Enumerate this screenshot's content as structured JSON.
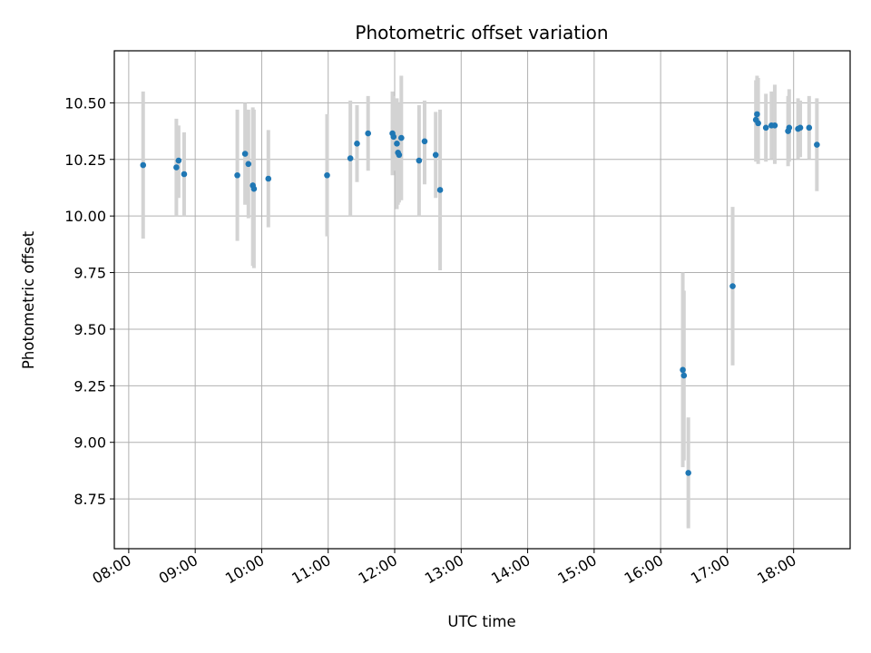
{
  "chart_data": {
    "type": "scatter",
    "title": "Photometric offset variation",
    "xlabel": "UTC time",
    "ylabel": "Photometric offset",
    "x_format": "HH:MM",
    "xlim": [
      "07:47",
      "18:51"
    ],
    "ylim": [
      8.53,
      10.73
    ],
    "x_ticks": [
      "08:00",
      "09:00",
      "10:00",
      "11:00",
      "12:00",
      "13:00",
      "14:00",
      "15:00",
      "16:00",
      "17:00",
      "18:00"
    ],
    "y_ticks": [
      "8.75",
      "9.00",
      "9.25",
      "9.50",
      "9.75",
      "10.00",
      "10.25",
      "10.50"
    ],
    "grid": true,
    "point_color": "#1f77b4",
    "errorbar_color": "#d3d3d3",
    "series": [
      {
        "points": [
          {
            "x": "08:13",
            "y": 10.225,
            "ylo": 9.9,
            "yhi": 10.55
          },
          {
            "x": "08:43",
            "y": 10.215,
            "ylo": 10.0,
            "yhi": 10.43
          },
          {
            "x": "08:45",
            "y": 10.245,
            "ylo": 10.08,
            "yhi": 10.4
          },
          {
            "x": "08:50",
            "y": 10.185,
            "ylo": 10.0,
            "yhi": 10.37
          },
          {
            "x": "09:38",
            "y": 10.18,
            "ylo": 9.89,
            "yhi": 10.47
          },
          {
            "x": "09:45",
            "y": 10.275,
            "ylo": 10.05,
            "yhi": 10.5
          },
          {
            "x": "09:48",
            "y": 10.23,
            "ylo": 9.99,
            "yhi": 10.47
          },
          {
            "x": "09:52",
            "y": 10.135,
            "ylo": 9.78,
            "yhi": 10.48
          },
          {
            "x": "09:53",
            "y": 10.12,
            "ylo": 9.77,
            "yhi": 10.47
          },
          {
            "x": "10:06",
            "y": 10.165,
            "ylo": 9.95,
            "yhi": 10.38
          },
          {
            "x": "10:59",
            "y": 10.18,
            "ylo": 9.91,
            "yhi": 10.45
          },
          {
            "x": "11:20",
            "y": 10.255,
            "ylo": 10.0,
            "yhi": 10.51
          },
          {
            "x": "11:26",
            "y": 10.32,
            "ylo": 10.15,
            "yhi": 10.49
          },
          {
            "x": "11:36",
            "y": 10.365,
            "ylo": 10.2,
            "yhi": 10.53
          },
          {
            "x": "11:58",
            "y": 10.365,
            "ylo": 10.18,
            "yhi": 10.55
          },
          {
            "x": "11:59",
            "y": 10.35,
            "ylo": 10.2,
            "yhi": 10.53
          },
          {
            "x": "12:02",
            "y": 10.32,
            "ylo": 10.03,
            "yhi": 10.52
          },
          {
            "x": "12:03",
            "y": 10.28,
            "ylo": 10.05,
            "yhi": 10.5
          },
          {
            "x": "12:04",
            "y": 10.27,
            "ylo": 10.06,
            "yhi": 10.45
          },
          {
            "x": "12:06",
            "y": 10.345,
            "ylo": 10.07,
            "yhi": 10.62
          },
          {
            "x": "12:22",
            "y": 10.245,
            "ylo": 10.0,
            "yhi": 10.49
          },
          {
            "x": "12:27",
            "y": 10.33,
            "ylo": 10.14,
            "yhi": 10.51
          },
          {
            "x": "12:37",
            "y": 10.27,
            "ylo": 10.08,
            "yhi": 10.46
          },
          {
            "x": "12:41",
            "y": 10.115,
            "ylo": 9.76,
            "yhi": 10.47
          },
          {
            "x": "16:20",
            "y": 9.32,
            "ylo": 8.89,
            "yhi": 9.75
          },
          {
            "x": "16:21",
            "y": 9.295,
            "ylo": 8.92,
            "yhi": 9.67
          },
          {
            "x": "16:25",
            "y": 8.865,
            "ylo": 8.62,
            "yhi": 9.11
          },
          {
            "x": "17:05",
            "y": 9.69,
            "ylo": 9.34,
            "yhi": 10.04
          },
          {
            "x": "17:26",
            "y": 10.425,
            "ylo": 10.24,
            "yhi": 10.6
          },
          {
            "x": "17:27",
            "y": 10.45,
            "ylo": 10.28,
            "yhi": 10.62
          },
          {
            "x": "17:28",
            "y": 10.41,
            "ylo": 10.23,
            "yhi": 10.61
          },
          {
            "x": "17:35",
            "y": 10.39,
            "ylo": 10.24,
            "yhi": 10.54
          },
          {
            "x": "17:40",
            "y": 10.4,
            "ylo": 10.25,
            "yhi": 10.55
          },
          {
            "x": "17:43",
            "y": 10.4,
            "ylo": 10.23,
            "yhi": 10.58
          },
          {
            "x": "17:55",
            "y": 10.375,
            "ylo": 10.22,
            "yhi": 10.53
          },
          {
            "x": "17:56",
            "y": 10.39,
            "ylo": 10.24,
            "yhi": 10.56
          },
          {
            "x": "18:04",
            "y": 10.385,
            "ylo": 10.25,
            "yhi": 10.52
          },
          {
            "x": "18:06",
            "y": 10.39,
            "ylo": 10.26,
            "yhi": 10.51
          },
          {
            "x": "18:14",
            "y": 10.39,
            "ylo": 10.25,
            "yhi": 10.53
          },
          {
            "x": "18:21",
            "y": 10.315,
            "ylo": 10.11,
            "yhi": 10.52
          }
        ]
      }
    ]
  }
}
